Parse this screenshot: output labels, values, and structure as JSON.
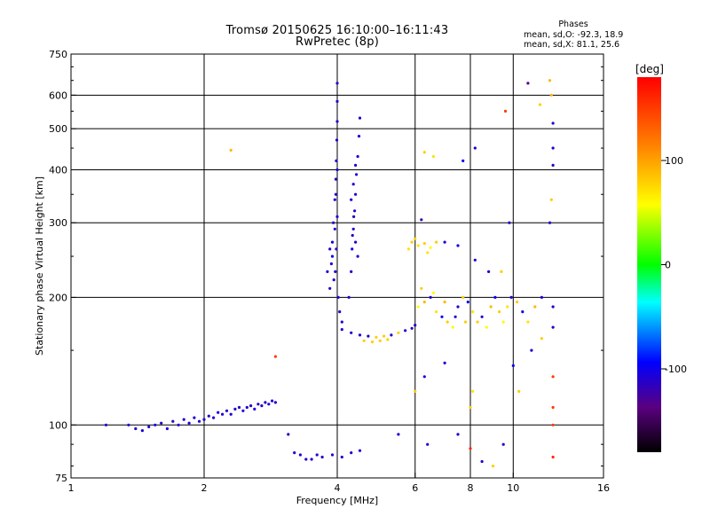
{
  "title_line1": "Tromsø 20150625 16:10:00–16:11:43",
  "title_line2": "RwPretec (8p)",
  "phases": {
    "heading": "Phases",
    "o_label": "mean, sd,O:",
    "o_values": "-92.3, 18.9",
    "x_label": "mean, sd,X:",
    "x_values": "81.1, 25.6"
  },
  "colorbar": {
    "label": "[deg]",
    "ticks": [
      {
        "value": 100,
        "label": "100"
      },
      {
        "value": 0,
        "label": "0"
      },
      {
        "value": -100,
        "label": "-100"
      }
    ],
    "range": [
      -180,
      180
    ]
  },
  "chart_data": {
    "type": "scatter",
    "xlabel": "Frequency [MHz]",
    "ylabel": "Stationary phase Virtual Height [km]",
    "x_scale": "log2",
    "y_scale": "log",
    "xlim": [
      1,
      16
    ],
    "ylim": [
      75,
      750
    ],
    "x_ticks": [
      {
        "value": 1,
        "label": "1"
      },
      {
        "value": 2,
        "label": "2"
      },
      {
        "value": 4,
        "label": "4"
      },
      {
        "value": 6,
        "label": "6"
      },
      {
        "value": 8,
        "label": "8"
      },
      {
        "value": 10,
        "label": "10"
      },
      {
        "value": 16,
        "label": "16"
      }
    ],
    "y_ticks": [
      {
        "value": 75,
        "label": "75"
      },
      {
        "value": 100,
        "label": "100"
      },
      {
        "value": 200,
        "label": "200"
      },
      {
        "value": 300,
        "label": "300"
      },
      {
        "value": 400,
        "label": "400"
      },
      {
        "value": 500,
        "label": "500"
      },
      {
        "value": 600,
        "label": "600"
      },
      {
        "value": 750,
        "label": "750"
      }
    ],
    "grid_x": [
      2,
      4,
      6,
      8,
      10
    ],
    "grid_y": [
      100,
      200,
      300,
      400,
      500,
      600
    ],
    "color_encoding": "phase [deg]",
    "series": [
      {
        "values": [
          [
            1.2,
            100,
            -110
          ],
          [
            1.35,
            100,
            -110
          ],
          [
            1.4,
            98,
            -110
          ],
          [
            1.45,
            97,
            -105
          ],
          [
            1.5,
            99,
            -110
          ],
          [
            1.55,
            100,
            -100
          ],
          [
            1.6,
            101,
            -110
          ],
          [
            1.65,
            98,
            -105
          ],
          [
            1.7,
            102,
            -110
          ],
          [
            1.75,
            100,
            -110
          ],
          [
            1.8,
            103,
            -110
          ],
          [
            1.85,
            101,
            -105
          ],
          [
            1.9,
            104,
            -110
          ],
          [
            1.95,
            102,
            -110
          ],
          [
            2.0,
            103,
            -105
          ],
          [
            2.05,
            105,
            -110
          ],
          [
            2.1,
            104,
            -110
          ],
          [
            2.15,
            107,
            -105
          ],
          [
            2.2,
            106,
            -110
          ],
          [
            2.25,
            108,
            -110
          ],
          [
            2.3,
            106,
            -105
          ],
          [
            2.35,
            109,
            -110
          ],
          [
            2.4,
            110,
            -110
          ],
          [
            2.45,
            108,
            -105
          ],
          [
            2.5,
            110,
            -110
          ],
          [
            2.55,
            111,
            -110
          ],
          [
            2.6,
            109,
            -105
          ],
          [
            2.65,
            112,
            -110
          ],
          [
            2.7,
            111,
            -110
          ],
          [
            2.75,
            113,
            -110
          ],
          [
            2.8,
            112,
            -105
          ],
          [
            2.85,
            114,
            -110
          ],
          [
            2.9,
            113,
            -110
          ]
        ]
      },
      {
        "values": [
          [
            3.85,
            210,
            -110
          ],
          [
            3.88,
            240,
            -110
          ],
          [
            3.9,
            270,
            -105
          ],
          [
            3.92,
            300,
            -110
          ],
          [
            3.95,
            340,
            -110
          ],
          [
            3.97,
            380,
            -110
          ],
          [
            3.98,
            420,
            -105
          ],
          [
            3.99,
            470,
            -110
          ],
          [
            4.0,
            520,
            -110
          ],
          [
            4.0,
            580,
            -110
          ],
          [
            4.0,
            640,
            -110
          ],
          [
            3.96,
            230,
            -110
          ],
          [
            3.98,
            260,
            -120
          ],
          [
            4.0,
            310,
            -110
          ],
          [
            4.02,
            200,
            -110
          ],
          [
            4.05,
            185,
            -110
          ],
          [
            4.1,
            175,
            -110
          ],
          [
            3.9,
            250,
            -100
          ],
          [
            3.93,
            220,
            -110
          ],
          [
            3.95,
            290,
            -110
          ],
          [
            3.97,
            350,
            -110
          ],
          [
            4.0,
            400,
            -105
          ],
          [
            3.8,
            230,
            -110
          ],
          [
            3.85,
            260,
            -110
          ]
        ]
      },
      {
        "values": [
          [
            4.25,
            200,
            -110
          ],
          [
            4.3,
            230,
            -110
          ],
          [
            4.32,
            260,
            -105
          ],
          [
            4.35,
            290,
            -110
          ],
          [
            4.38,
            320,
            -110
          ],
          [
            4.4,
            350,
            -110
          ],
          [
            4.42,
            390,
            -105
          ],
          [
            4.45,
            430,
            -110
          ],
          [
            4.48,
            480,
            -110
          ],
          [
            4.5,
            530,
            -110
          ],
          [
            4.33,
            280,
            -110
          ],
          [
            4.36,
            310,
            -110
          ],
          [
            4.4,
            270,
            -110
          ],
          [
            4.45,
            250,
            -110
          ],
          [
            4.3,
            340,
            -110
          ],
          [
            4.35,
            370,
            -110
          ],
          [
            4.4,
            410,
            -110
          ]
        ]
      },
      {
        "values": [
          [
            4.1,
            168,
            -110
          ],
          [
            4.3,
            165,
            -110
          ],
          [
            4.5,
            163,
            -110
          ],
          [
            4.7,
            162,
            -110
          ],
          [
            4.9,
            161,
            80
          ],
          [
            5.1,
            162,
            80
          ],
          [
            5.3,
            163,
            -110
          ],
          [
            5.5,
            165,
            80
          ],
          [
            5.7,
            167,
            -110
          ],
          [
            5.9,
            169,
            -110
          ],
          [
            6.0,
            172,
            -110
          ],
          [
            4.6,
            158,
            80
          ],
          [
            4.8,
            157,
            80
          ],
          [
            5.0,
            158,
            80
          ],
          [
            5.2,
            159,
            80
          ]
        ]
      },
      {
        "values": [
          [
            6.1,
            190,
            60
          ],
          [
            6.3,
            195,
            90
          ],
          [
            6.5,
            200,
            -110
          ],
          [
            6.7,
            185,
            70
          ],
          [
            6.9,
            180,
            -100
          ],
          [
            7.1,
            175,
            80
          ],
          [
            7.3,
            170,
            60
          ],
          [
            7.5,
            190,
            -110
          ],
          [
            7.7,
            200,
            80
          ],
          [
            7.9,
            195,
            -100
          ],
          [
            8.1,
            185,
            70
          ],
          [
            8.3,
            175,
            80
          ],
          [
            8.5,
            180,
            -110
          ],
          [
            8.7,
            170,
            60
          ],
          [
            8.9,
            190,
            90
          ],
          [
            9.1,
            200,
            -100
          ],
          [
            9.3,
            185,
            80
          ],
          [
            9.5,
            175,
            60
          ],
          [
            9.7,
            190,
            70
          ],
          [
            9.9,
            200,
            -110
          ],
          [
            10.2,
            195,
            80
          ],
          [
            10.5,
            185,
            -100
          ],
          [
            10.8,
            175,
            70
          ],
          [
            11.2,
            190,
            90
          ],
          [
            11.6,
            200,
            -110
          ],
          [
            6.2,
            210,
            80
          ],
          [
            6.6,
            205,
            60
          ],
          [
            7.0,
            195,
            90
          ],
          [
            7.4,
            180,
            -110
          ],
          [
            7.8,
            175,
            80
          ]
        ]
      },
      {
        "values": [
          [
            5.9,
            270,
            80
          ],
          [
            6.1,
            265,
            70
          ],
          [
            6.3,
            268,
            80
          ],
          [
            6.5,
            262,
            60
          ],
          [
            6.7,
            270,
            80
          ],
          [
            5.8,
            260,
            70
          ],
          [
            6.0,
            275,
            80
          ],
          [
            6.4,
            255,
            70
          ],
          [
            7.0,
            270,
            -110
          ],
          [
            7.5,
            265,
            -100
          ]
        ]
      },
      {
        "values": [
          [
            3.1,
            95,
            -110
          ],
          [
            3.3,
            85,
            -110
          ],
          [
            3.5,
            83,
            -110
          ],
          [
            3.7,
            84,
            -110
          ],
          [
            3.9,
            85,
            -110
          ],
          [
            4.1,
            84,
            -110
          ],
          [
            4.3,
            86,
            -110
          ],
          [
            4.5,
            87,
            -110
          ],
          [
            3.2,
            86,
            -110
          ],
          [
            3.4,
            83,
            -110
          ],
          [
            3.6,
            85,
            -110
          ]
        ]
      },
      {
        "values": [
          [
            2.3,
            445,
            90
          ],
          [
            2.9,
            145,
            150
          ],
          [
            6.2,
            305,
            -120
          ],
          [
            6.3,
            440,
            80
          ],
          [
            6.6,
            430,
            70
          ],
          [
            7.7,
            420,
            -100
          ],
          [
            8.2,
            450,
            -110
          ],
          [
            9.6,
            550,
            150
          ],
          [
            10.8,
            640,
            -130
          ],
          [
            11.5,
            570,
            80
          ],
          [
            12.1,
            650,
            90
          ],
          [
            12.2,
            600,
            90
          ],
          [
            12.3,
            515,
            -110
          ],
          [
            12.3,
            450,
            -110
          ],
          [
            12.3,
            410,
            -110
          ],
          [
            12.2,
            340,
            80
          ],
          [
            12.1,
            300,
            -110
          ],
          [
            12.3,
            190,
            -110
          ],
          [
            12.3,
            170,
            -110
          ],
          [
            12.3,
            130,
            150
          ],
          [
            12.3,
            110,
            150
          ],
          [
            12.3,
            100,
            150
          ],
          [
            12.3,
            84,
            160
          ],
          [
            8.0,
            110,
            80
          ],
          [
            8.1,
            120,
            70
          ],
          [
            7.5,
            95,
            -110
          ],
          [
            8.0,
            88,
            160
          ],
          [
            8.5,
            82,
            -110
          ],
          [
            9.0,
            80,
            80
          ],
          [
            9.5,
            90,
            -110
          ],
          [
            6.4,
            90,
            -110
          ],
          [
            5.5,
            95,
            -110
          ],
          [
            10.3,
            120,
            80
          ],
          [
            10.0,
            138,
            -100
          ],
          [
            11.0,
            150,
            -110
          ],
          [
            11.6,
            160,
            80
          ],
          [
            7.0,
            140,
            -110
          ],
          [
            6.3,
            130,
            -110
          ],
          [
            6.0,
            120,
            80
          ],
          [
            9.8,
            300,
            -110
          ],
          [
            8.8,
            230,
            -110
          ],
          [
            9.4,
            230,
            80
          ],
          [
            8.2,
            245,
            -110
          ]
        ]
      }
    ]
  }
}
